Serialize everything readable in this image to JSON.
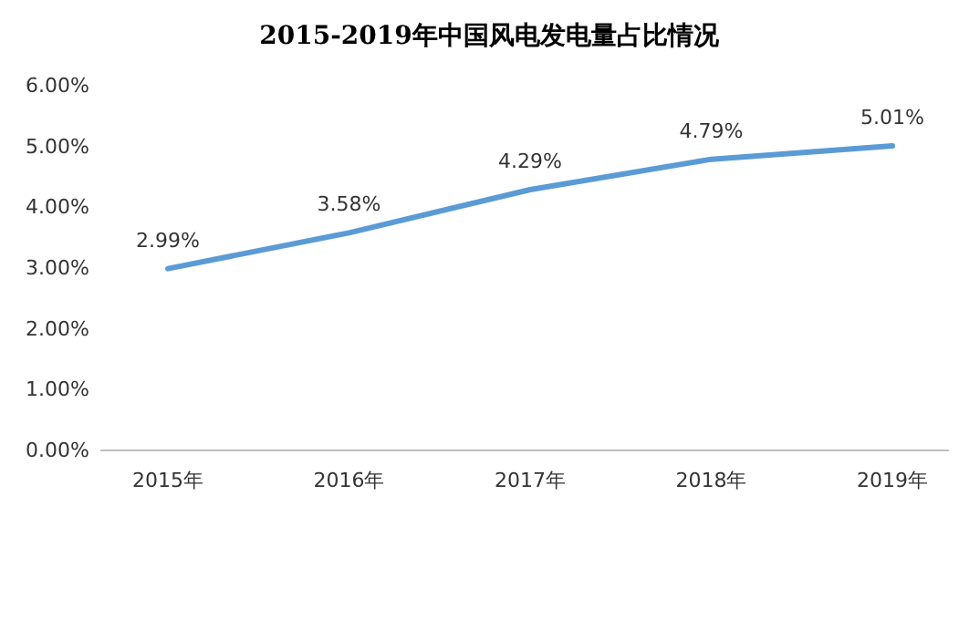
{
  "chart_data": {
    "type": "line",
    "title": "2015-2019年中国风电发电量占比情况",
    "categories": [
      "2015年",
      "2016年",
      "2017年",
      "2018年",
      "2019年"
    ],
    "series": [
      {
        "color": "#5b9bd5",
        "values": [
          2.99,
          3.58,
          4.29,
          4.79,
          5.01
        ]
      }
    ],
    "value_labels": [
      "2.99%",
      "3.58%",
      "4.29%",
      "4.79%",
      "5.01%"
    ],
    "ylim": [
      0,
      6
    ],
    "yticks": [
      {
        "value": 0,
        "label": "0.00%"
      },
      {
        "value": 1,
        "label": "1.00%"
      },
      {
        "value": 2,
        "label": "2.00%"
      },
      {
        "value": 3,
        "label": "3.00%"
      },
      {
        "value": 4,
        "label": "4.00%"
      },
      {
        "value": 5,
        "label": "5.00%"
      },
      {
        "value": 6,
        "label": "6.00%"
      }
    ],
    "grid": false,
    "marker": "none",
    "line_style": "solid"
  }
}
